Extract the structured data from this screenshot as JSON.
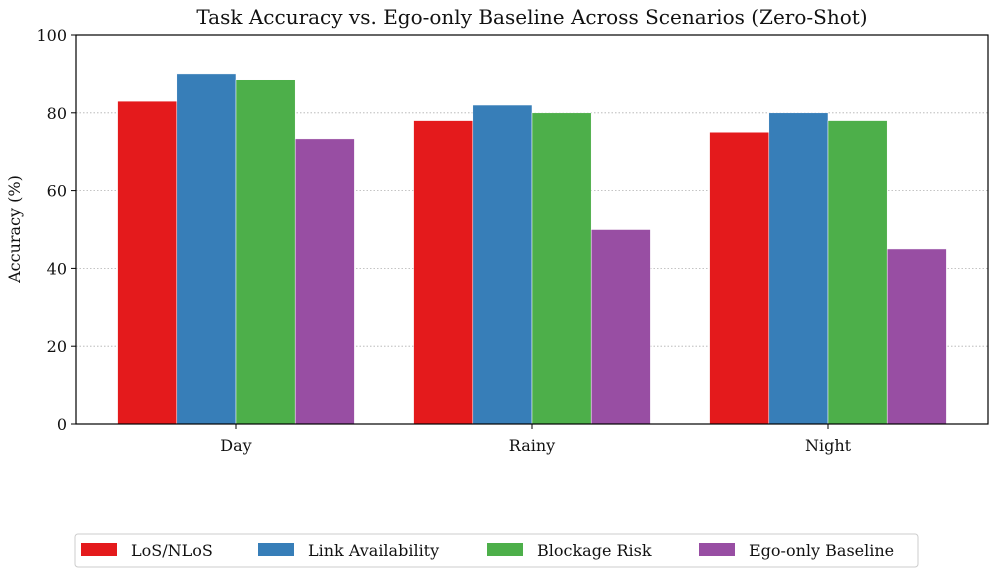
{
  "chart_data": {
    "type": "bar",
    "title": "Task Accuracy vs. Ego-only Baseline Across Scenarios (Zero-Shot)",
    "xlabel": "",
    "ylabel": "Accuracy (%)",
    "ylim": [
      0,
      100
    ],
    "yticks": [
      "0",
      "20",
      "40",
      "60",
      "80",
      "100"
    ],
    "grid": "y-dotted",
    "legend_position": "bottom-center",
    "categories": [
      "Day",
      "Rainy",
      "Night"
    ],
    "series": [
      {
        "name": "LoS/NLoS",
        "color": "#e41a1c",
        "values": [
          83,
          78,
          75
        ]
      },
      {
        "name": "Link Availability",
        "color": "#377eb8",
        "values": [
          90,
          82,
          80
        ]
      },
      {
        "name": "Blockage Risk",
        "color": "#4daf4a",
        "values": [
          88.5,
          80,
          78
        ]
      },
      {
        "name": "Ego-only Baseline",
        "color": "#984ea3",
        "values": [
          73.3,
          50,
          45
        ]
      }
    ]
  }
}
